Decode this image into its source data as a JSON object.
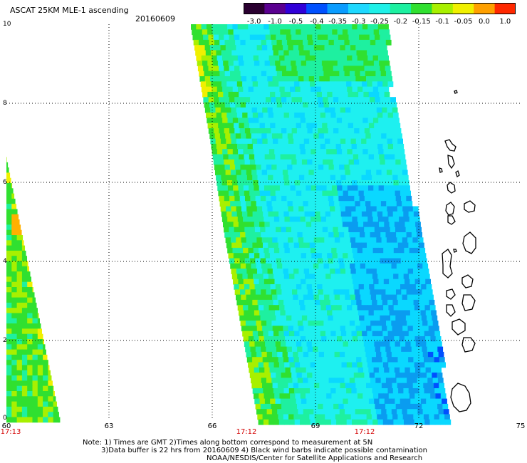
{
  "header": {
    "title": "ASCAT 25KM MLE-1 ascending",
    "date": "20160609"
  },
  "colorbar": {
    "tick_labels": [
      "-3.0",
      "-1.0",
      "-0.5",
      "-0.4",
      "-0.35",
      "-0.3",
      "-0.25",
      "-0.2",
      "-0.15",
      "-0.1",
      "-0.05",
      "0.0",
      "1.0"
    ],
    "colors": [
      "#2a0030",
      "#5a0090",
      "#3000d8",
      "#0050ff",
      "#0a9cff",
      "#1ed8ff",
      "#1ef0e8",
      "#1cf0a0",
      "#30e030",
      "#a8f000",
      "#f0f000",
      "#ffa000",
      "#ff2800"
    ]
  },
  "axes": {
    "y_labels": [
      "10",
      "8",
      "6",
      "4",
      "2",
      "0"
    ],
    "x_labels": [
      "60",
      "63",
      "66",
      "69",
      "72",
      "75"
    ],
    "time_labels": [
      "17:13",
      "17:12",
      "17:12"
    ]
  },
  "colors": {
    "cyan": "#1ef0f0",
    "cyan_blue": "#0ad8ff",
    "blue": "#0a9cf0",
    "deep_blue": "#0050ff",
    "green": "#30e030",
    "lime": "#a8f000",
    "yellow": "#f0f000",
    "orange": "#ffb000",
    "teal_green": "#1ef0a0"
  },
  "notes": {
    "line1": "Note: 1) Times are GMT 2)Times along bottom correspond to measurement at 5N",
    "line2": "3)Data buffer is 22 hrs from 20160609 4) Black wind barbs indicate possible contamination",
    "line3": "NOAA/NESDIS/Center for Satellite Applications and Research"
  }
}
